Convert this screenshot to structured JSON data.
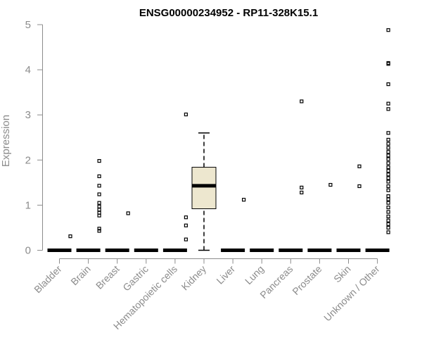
{
  "chart_data": {
    "type": "box",
    "title": "ENSG00000234952 - RP11-328K15.1",
    "xlabel": "",
    "ylabel": "Expression",
    "ylim": [
      0,
      5
    ],
    "yticks": [
      0,
      1,
      2,
      3,
      4,
      5
    ],
    "grid": false,
    "categories": [
      "Bladder",
      "Brain",
      "Breast",
      "Gastric",
      "Hematopoietic cells",
      "Kidney",
      "Liver",
      "Lung",
      "Pancreas",
      "Prostate",
      "Skin",
      "Unknown / Other"
    ],
    "boxes": [
      {
        "category": "Bladder",
        "q1": 0,
        "median": 0,
        "q3": 0,
        "whisker_low": 0,
        "whisker_high": 0,
        "outliers": [
          0.31
        ]
      },
      {
        "category": "Brain",
        "q1": 0,
        "median": 0,
        "q3": 0,
        "whisker_low": 0,
        "whisker_high": 0,
        "outliers": [
          0.43,
          0.48,
          0.77,
          0.83,
          0.9,
          0.97,
          1.05,
          1.24,
          1.43,
          1.64,
          1.98
        ]
      },
      {
        "category": "Breast",
        "q1": 0,
        "median": 0,
        "q3": 0,
        "whisker_low": 0,
        "whisker_high": 0,
        "outliers": [
          0.82
        ]
      },
      {
        "category": "Gastric",
        "q1": 0,
        "median": 0,
        "q3": 0,
        "whisker_low": 0,
        "whisker_high": 0,
        "outliers": []
      },
      {
        "category": "Hematopoietic cells",
        "q1": 0,
        "median": 0,
        "q3": 0,
        "whisker_low": 0,
        "whisker_high": 0,
        "outliers": [
          0.24,
          0.55,
          0.73,
          3.01
        ]
      },
      {
        "category": "Kidney",
        "q1": 0.92,
        "median": 1.43,
        "q3": 1.84,
        "whisker_low": 0,
        "whisker_high": 2.6,
        "outliers": []
      },
      {
        "category": "Liver",
        "q1": 0,
        "median": 0,
        "q3": 0,
        "whisker_low": 0,
        "whisker_high": 0,
        "outliers": [
          1.12
        ]
      },
      {
        "category": "Lung",
        "q1": 0,
        "median": 0,
        "q3": 0,
        "whisker_low": 0,
        "whisker_high": 0,
        "outliers": []
      },
      {
        "category": "Pancreas",
        "q1": 0,
        "median": 0,
        "q3": 0,
        "whisker_low": 0,
        "whisker_high": 0,
        "outliers": [
          1.28,
          1.39,
          3.3
        ]
      },
      {
        "category": "Prostate",
        "q1": 0,
        "median": 0,
        "q3": 0,
        "whisker_low": 0,
        "whisker_high": 0,
        "outliers": [
          1.45
        ]
      },
      {
        "category": "Skin",
        "q1": 0,
        "median": 0,
        "q3": 0,
        "whisker_low": 0,
        "whisker_high": 0,
        "outliers": [
          1.42,
          1.86
        ]
      },
      {
        "category": "Unknown / Other",
        "q1": 0,
        "median": 0,
        "q3": 0,
        "whisker_low": 0,
        "whisker_high": 0,
        "outliers": [
          0.4,
          0.5,
          0.58,
          0.66,
          0.75,
          0.85,
          0.95,
          1.05,
          1.13,
          1.2,
          1.33,
          1.42,
          1.52,
          1.6,
          1.68,
          1.76,
          1.84,
          1.93,
          2.02,
          2.1,
          2.18,
          2.27,
          2.36,
          2.45,
          2.6,
          3.13,
          3.25,
          3.68,
          4.13,
          4.15,
          4.88
        ]
      }
    ],
    "colors": {
      "box_fill": "#ede7cf",
      "box_stroke": "#000000",
      "median_line": "#000000",
      "axis": "#8c8c8c",
      "text": "#8c8c8c",
      "title": "#000000"
    }
  }
}
